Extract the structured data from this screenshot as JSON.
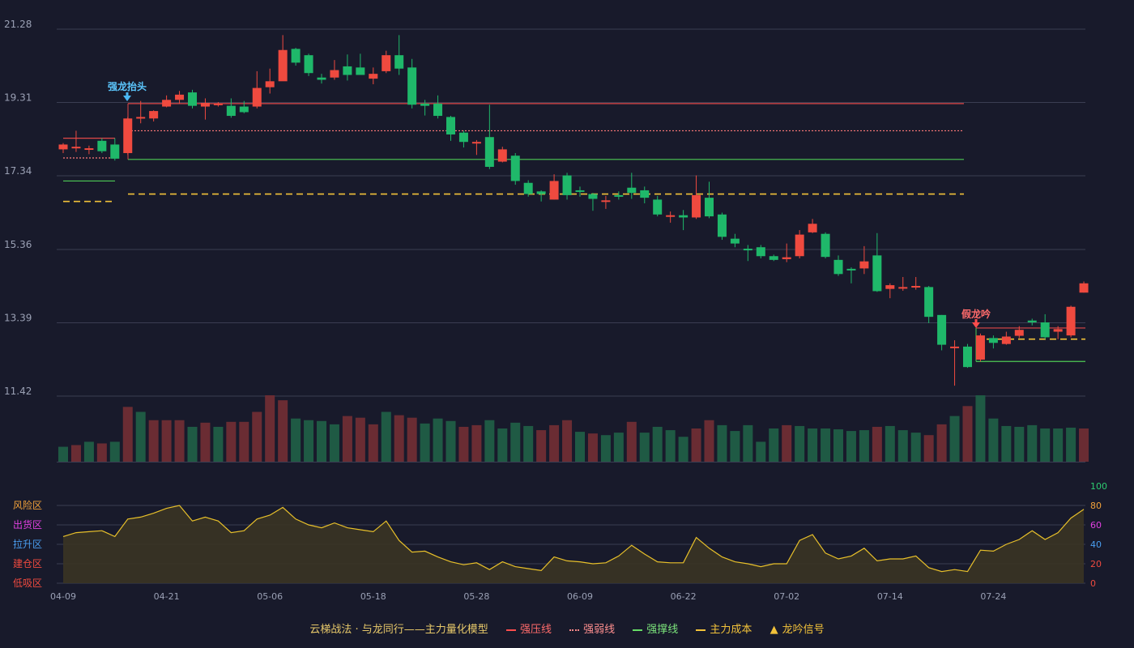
{
  "chart_data": {
    "type": "candlestick",
    "price_axis": {
      "ticks": [
        "21.28",
        "19.31",
        "17.34",
        "15.36",
        "13.39",
        "11.42"
      ],
      "min": 11.42,
      "max": 21.28
    },
    "x_tick_labels": [
      "04-09",
      "04-21",
      "05-06",
      "05-18",
      "05-28",
      "06-09",
      "06-22",
      "07-02",
      "07-14",
      "07-24"
    ],
    "candles": [
      [
        18.05,
        18.18,
        18.22,
        17.95
      ],
      [
        18.1,
        18.12,
        18.55,
        17.98
      ],
      [
        18.08,
        18.08,
        18.15,
        17.92
      ],
      [
        18.28,
        18.0,
        18.35,
        17.95
      ],
      [
        18.18,
        17.8,
        18.35,
        17.75
      ],
      [
        17.95,
        18.88,
        18.92,
        17.9
      ],
      [
        18.92,
        18.92,
        19.35,
        18.75
      ],
      [
        18.88,
        19.08,
        19.1,
        18.8
      ],
      [
        19.2,
        19.38,
        19.5,
        19.18
      ],
      [
        19.38,
        19.52,
        19.62,
        19.28
      ],
      [
        19.58,
        19.22,
        19.65,
        19.15
      ],
      [
        19.2,
        19.3,
        19.42,
        18.85
      ],
      [
        19.25,
        19.28,
        19.32,
        19.2
      ],
      [
        19.22,
        18.95,
        19.42,
        18.9
      ],
      [
        19.2,
        19.05,
        19.35,
        19.02
      ],
      [
        19.2,
        19.7,
        20.15,
        19.15
      ],
      [
        19.72,
        19.88,
        20.22,
        19.55
      ],
      [
        19.88,
        20.72,
        21.12,
        19.9
      ],
      [
        20.75,
        20.38,
        20.78,
        20.3
      ],
      [
        20.58,
        20.1,
        20.62,
        20.02
      ],
      [
        19.98,
        19.92,
        20.08,
        19.82
      ],
      [
        19.98,
        20.18,
        20.45,
        19.92
      ],
      [
        20.28,
        20.05,
        20.6,
        19.9
      ],
      [
        20.25,
        20.05,
        20.62,
        20.08
      ],
      [
        19.95,
        20.08,
        20.25,
        19.8
      ],
      [
        20.15,
        20.58,
        20.7,
        20.1
      ],
      [
        20.58,
        20.22,
        21.12,
        20.05
      ],
      [
        20.25,
        19.25,
        20.48,
        19.15
      ],
      [
        19.28,
        19.22,
        19.38,
        18.96
      ],
      [
        19.28,
        18.95,
        19.5,
        18.88
      ],
      [
        18.92,
        18.45,
        18.95,
        18.28
      ],
      [
        18.5,
        18.25,
        18.55,
        18.1
      ],
      [
        18.22,
        18.25,
        18.3,
        17.9
      ],
      [
        18.38,
        17.58,
        19.25,
        17.52
      ],
      [
        17.72,
        18.05,
        18.12,
        17.7
      ],
      [
        17.88,
        17.2,
        17.95,
        17.1
      ],
      [
        17.15,
        16.85,
        17.22,
        16.78
      ],
      [
        16.92,
        16.85,
        16.95,
        16.65
      ],
      [
        16.7,
        17.2,
        17.38,
        16.7
      ],
      [
        17.35,
        16.82,
        17.42,
        16.7
      ],
      [
        16.95,
        16.92,
        17.05,
        16.78
      ],
      [
        16.85,
        16.72,
        16.88,
        16.4
      ],
      [
        16.65,
        16.68,
        16.8,
        16.45
      ],
      [
        16.82,
        16.8,
        16.92,
        16.7
      ],
      [
        17.02,
        16.88,
        17.42,
        16.72
      ],
      [
        16.95,
        16.75,
        17.05,
        16.6
      ],
      [
        16.7,
        16.3,
        16.8,
        16.25
      ],
      [
        16.25,
        16.28,
        16.38,
        16.08
      ],
      [
        16.28,
        16.22,
        16.42,
        15.88
      ],
      [
        16.22,
        16.82,
        17.35,
        16.18
      ],
      [
        16.75,
        16.25,
        17.18,
        16.2
      ],
      [
        16.3,
        15.7,
        16.35,
        15.62
      ],
      [
        15.65,
        15.52,
        15.78,
        15.42
      ],
      [
        15.38,
        15.36,
        15.48,
        15.05
      ],
      [
        15.42,
        15.18,
        15.48,
        15.12
      ],
      [
        15.18,
        15.08,
        15.22,
        15.05
      ],
      [
        15.1,
        15.15,
        15.52,
        15.02
      ],
      [
        15.18,
        15.76,
        15.88,
        15.12
      ],
      [
        15.82,
        16.05,
        16.18,
        15.8
      ],
      [
        15.78,
        15.16,
        15.82,
        15.12
      ],
      [
        15.08,
        14.7,
        15.2,
        14.65
      ],
      [
        14.84,
        14.82,
        14.88,
        14.45
      ],
      [
        14.85,
        15.04,
        15.45,
        14.7
      ],
      [
        15.2,
        14.24,
        15.8,
        14.22
      ],
      [
        14.3,
        14.4,
        14.45,
        14.05
      ],
      [
        14.32,
        14.35,
        14.62,
        14.25
      ],
      [
        14.35,
        14.38,
        14.62,
        14.28
      ],
      [
        14.35,
        13.55,
        14.38,
        13.38
      ],
      [
        13.6,
        12.8,
        13.6,
        12.65
      ],
      [
        12.72,
        12.75,
        12.92,
        11.7
      ],
      [
        12.75,
        12.2,
        12.82,
        12.18
      ],
      [
        12.4,
        13.05,
        13.1,
        12.35
      ],
      [
        12.98,
        12.85,
        13.05,
        12.7
      ],
      [
        12.82,
        13.02,
        13.15,
        12.8
      ],
      [
        13.04,
        13.2,
        13.3,
        12.98
      ],
      [
        13.45,
        13.4,
        13.5,
        13.32
      ],
      [
        13.4,
        13.0,
        13.62,
        12.95
      ],
      [
        13.15,
        13.22,
        13.3,
        12.95
      ],
      [
        13.05,
        13.82,
        13.85,
        13.0
      ],
      [
        14.2,
        14.45,
        14.5,
        14.2
      ]
    ],
    "volume_colors": [
      "up",
      "down",
      "up",
      "down",
      "up",
      "down",
      "up",
      "down",
      "down",
      "down",
      "up",
      "down",
      "up",
      "down",
      "down",
      "down",
      "down",
      "down",
      "up",
      "up",
      "up",
      "up",
      "down",
      "down",
      "down",
      "up",
      "down",
      "down",
      "up",
      "up",
      "up",
      "down",
      "down",
      "up",
      "up",
      "up",
      "up",
      "down",
      "down",
      "down",
      "up",
      "down",
      "up",
      "up",
      "down",
      "up",
      "up",
      "up",
      "up",
      "down",
      "down",
      "up",
      "up",
      "up",
      "up",
      "up",
      "down",
      "up",
      "up",
      "up",
      "up",
      "up",
      "up",
      "down",
      "up",
      "up",
      "up",
      "down",
      "down",
      "up",
      "down",
      "up",
      "up",
      "up",
      "up",
      "up",
      "up",
      "up",
      "up",
      "down"
    ],
    "volume": [
      18,
      20,
      24,
      22,
      24,
      66,
      60,
      50,
      50,
      50,
      42,
      47,
      42,
      48,
      48,
      60,
      80,
      74,
      52,
      50,
      49,
      45,
      55,
      53,
      45,
      60,
      56,
      53,
      46,
      52,
      49,
      42,
      44,
      50,
      40,
      47,
      43,
      38,
      44,
      50,
      36,
      34,
      32,
      35,
      48,
      35,
      42,
      38,
      30,
      40,
      50,
      44,
      37,
      44,
      24,
      40,
      44,
      43,
      40,
      40,
      39,
      37,
      38,
      42,
      43,
      38,
      35,
      32,
      45,
      55,
      67,
      80,
      52,
      43,
      42,
      44,
      40,
      40,
      41,
      40
    ],
    "risk_line": [
      48,
      52,
      53,
      54,
      48,
      66,
      68,
      72,
      77,
      80,
      64,
      68,
      64,
      52,
      54,
      66,
      70,
      78,
      66,
      60,
      57,
      62,
      57,
      55,
      53,
      64,
      44,
      32,
      33,
      27,
      22,
      19,
      21,
      14,
      22,
      17,
      15,
      13,
      27,
      23,
      22,
      20,
      21,
      28,
      39,
      30,
      22,
      21,
      21,
      47,
      36,
      27,
      22,
      20,
      17,
      20,
      20,
      44,
      50,
      31,
      25,
      28,
      36,
      23,
      25,
      25,
      28,
      16,
      12,
      14,
      12,
      34,
      33,
      40,
      45,
      54,
      45,
      52,
      67,
      76
    ],
    "signals": {
      "bull_label": "强龙抬头",
      "bear_label": "假龙吟"
    },
    "risk_zones": [
      "风险区",
      "出货区",
      "拉升区",
      "建仓区",
      "低吸区"
    ],
    "risk_axis_ticks": [
      "100",
      "80",
      "60",
      "40",
      "20",
      "0"
    ],
    "lines": {
      "strong_press": 19.28,
      "weak_line": 18.55,
      "strong_support": 17.78,
      "cost": 16.85,
      "early_press": 18.35,
      "early_weak": 17.82,
      "early_support": 17.2,
      "early_cost": 16.65,
      "late_press": 13.25,
      "late_cost": 12.95,
      "late_support": 12.35
    },
    "colors": {
      "up": "#ef4a3f",
      "down": "#1fb86a",
      "press": "#e04848",
      "weak": "#ff7a7a",
      "support": "#4ecb55",
      "cost": "#f2c23a",
      "risk": "#e8c02a"
    }
  },
  "legend": {
    "title": "云梯战法 · 与龙同行——主力量化模型",
    "items": [
      {
        "label": "强压线",
        "color": "#ff4d4d",
        "style": "solid"
      },
      {
        "label": "强弱线",
        "color": "#ff8a8a",
        "style": "dotted"
      },
      {
        "label": "强撑线",
        "color": "#66dd66",
        "style": "solid"
      },
      {
        "label": "主力成本",
        "color": "#f2c23a",
        "style": "dashed"
      },
      {
        "label": "龙吟信号",
        "color": "#f2c23a",
        "style": "triangle"
      }
    ]
  }
}
